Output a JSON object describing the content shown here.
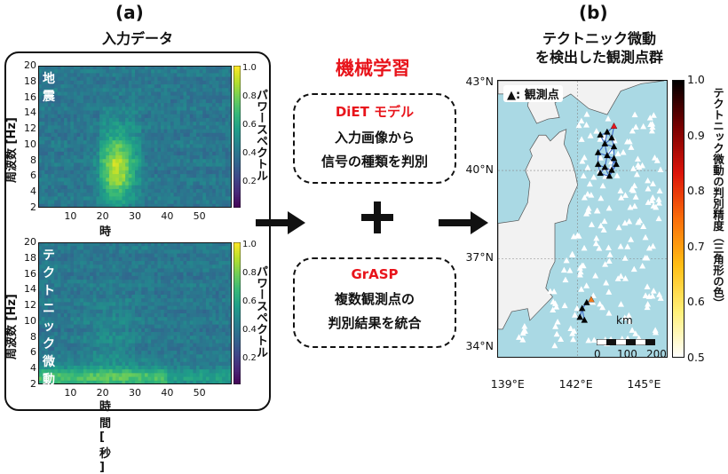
{
  "panel_a": {
    "label": "(a)",
    "title": "入力データ",
    "spectrogram_top": {
      "tag": "地震",
      "ylabel": "周波数 [Hz]",
      "xlabel": "時間 [ 秒 ]",
      "yticks": [
        "20",
        "18",
        "16",
        "14",
        "12",
        "10",
        "8",
        "6",
        "4",
        "2"
      ],
      "xticks": [
        "10",
        "20",
        "30",
        "40",
        "50"
      ],
      "cbar_ticks": [
        "1.0",
        "0.8",
        "0.6",
        "0.4",
        "0.2"
      ],
      "cbar_label": "パワースペクトル"
    },
    "spectrogram_bottom": {
      "tag": "テクトニック微動",
      "ylabel": "周波数 [Hz]",
      "xlabel": "時間 [ 秒 ]",
      "yticks": [
        "20",
        "18",
        "16",
        "14",
        "12",
        "10",
        "8",
        "6",
        "4",
        "2"
      ],
      "xticks": [
        "10",
        "20",
        "30",
        "40",
        "50"
      ],
      "cbar_ticks": [
        "1.0",
        "0.8",
        "0.6",
        "0.4",
        "0.2"
      ],
      "cbar_label": "パワースペクトル"
    }
  },
  "middle": {
    "title": "機械学習",
    "box1": {
      "heading": "DiET モデル",
      "line1": "入力画像から",
      "line2": "信号の種類を判別"
    },
    "plus": "+",
    "box2": {
      "heading": "GrASP",
      "line1": "複数観測点の",
      "line2": "判別結果を統合"
    }
  },
  "panel_b": {
    "label": "(b)",
    "title_line1": "テクトニック微動",
    "title_line2": "を検出した観測点群",
    "legend": "▲: 観測点",
    "lat_ticks": [
      "43°N",
      "40°N",
      "37°N",
      "34°N"
    ],
    "lon_ticks": [
      "139°E",
      "142°E",
      "145°E"
    ],
    "scale_unit": "km",
    "scale_ticks": [
      "0",
      "100",
      "200"
    ],
    "cbar_ticks": [
      "1.0",
      "0.9",
      "0.8",
      "0.7",
      "0.6",
      "0.5"
    ],
    "cbar_label": "テクトニック微動の判別精度（三角形の色）",
    "colors": {
      "sea": "#aad9e4",
      "land": "#f2f2f2",
      "accent_red": "#e8141b"
    }
  }
}
